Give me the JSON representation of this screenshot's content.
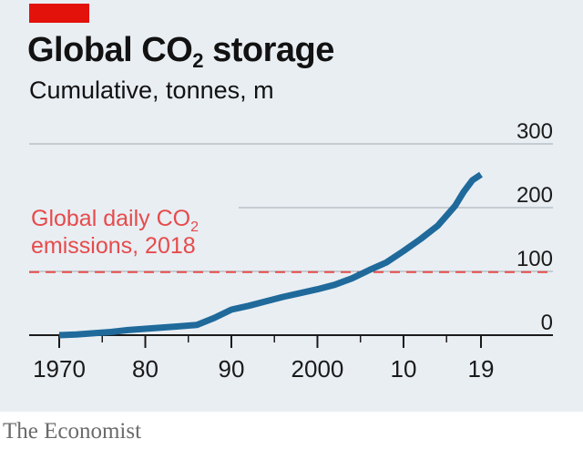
{
  "brand": {
    "accent_color": "#e3120b"
  },
  "header": {
    "title_prefix": "Global CO",
    "title_sub": "2",
    "title_suffix": " storage",
    "subtitle": "Cumulative, tonnes, m"
  },
  "source": "The Economist",
  "chart_data": {
    "type": "line",
    "title": "Global CO2 storage",
    "subtitle": "Cumulative, tonnes, m",
    "xlabel": "",
    "ylabel": "",
    "xlim": [
      1970,
      2019
    ],
    "ylim": [
      0,
      300
    ],
    "y_ticks": [
      0,
      100,
      200,
      300
    ],
    "y_tick_labels": [
      "0",
      "100",
      "200",
      "300"
    ],
    "x_ticks": [
      1970,
      1980,
      1990,
      2000,
      2010,
      2019
    ],
    "x_tick_labels": [
      "1970",
      "80",
      "90",
      "2000",
      "10",
      "19"
    ],
    "x_minor_ticks": [
      1975,
      1985,
      1995,
      2005,
      2015
    ],
    "grid": true,
    "series": [
      {
        "color": "#1f6a9b",
        "x": [
          1970,
          1972,
          1974,
          1976,
          1978,
          1980,
          1982,
          1984,
          1986,
          1988,
          1990,
          1992,
          1994,
          1996,
          1998,
          2000,
          2002,
          2004,
          2006,
          2008,
          2010,
          2012,
          2014,
          2016,
          2017,
          2018,
          2019
        ],
        "y": [
          0,
          1,
          3,
          5,
          8,
          10,
          12,
          14,
          16,
          27,
          40,
          46,
          53,
          60,
          66,
          72,
          79,
          89,
          102,
          114,
          132,
          151,
          172,
          203,
          225,
          243,
          252
        ]
      }
    ],
    "annotations": [
      {
        "type": "hline",
        "y": 99,
        "color": "#e64b4b",
        "line1_prefix": "Global daily CO",
        "line1_sub": "2",
        "line2": "emissions, 2018"
      }
    ],
    "y_axis_position": "right"
  }
}
